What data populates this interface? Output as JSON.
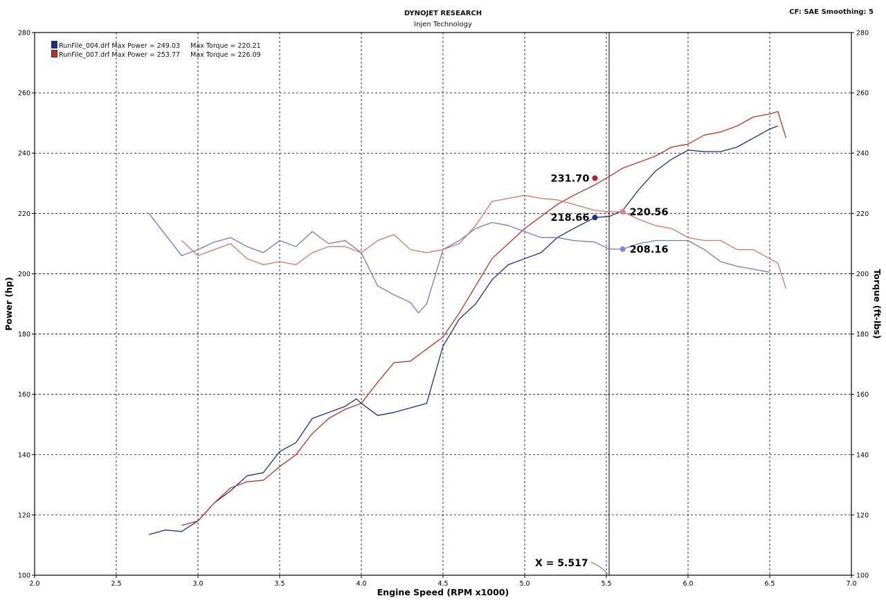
{
  "header": {
    "title": "DYNOJET RESEARCH",
    "subtitle": "Injen Technology",
    "settings": "CF: SAE  Smoothing: 5"
  },
  "legend": [
    {
      "file": "RunFile_004.drf",
      "power_label": "Max Power = 249.03",
      "torque_label": "Max Torque = 220.21",
      "color": "#1a2a9a"
    },
    {
      "file": "RunFile_007.drf",
      "power_label": "Max Power = 253.77",
      "torque_label": "Max Torque = 226.09",
      "color": "#c03020"
    }
  ],
  "cursor": {
    "label": "X = 5.517",
    "x": 5.517
  },
  "chart_data": {
    "type": "line",
    "xlabel": "Engine Speed (RPM x1000)",
    "ylabel": "Power (hp)",
    "y2label": "Torque (ft-lbs)",
    "xlim": [
      2.0,
      7.0
    ],
    "ylim": [
      100,
      280
    ],
    "y2lim": [
      100,
      280
    ],
    "xticks": [
      "2.0",
      "2.5",
      "3.0",
      "3.5",
      "4.0",
      "4.5",
      "5.0",
      "5.5",
      "6.0",
      "6.5",
      "7.0"
    ],
    "yticks": [
      "100",
      "120",
      "140",
      "160",
      "180",
      "200",
      "220",
      "240",
      "260",
      "280"
    ],
    "grid": true,
    "series": [
      {
        "name": "RunFile_004.drf Power",
        "color": "#1a2a9a",
        "x": [
          2.7,
          2.8,
          2.9,
          3.0,
          3.1,
          3.2,
          3.3,
          3.4,
          3.5,
          3.6,
          3.7,
          3.8,
          3.9,
          3.97,
          4.0,
          4.1,
          4.2,
          4.3,
          4.4,
          4.5,
          4.6,
          4.7,
          4.8,
          4.9,
          5.0,
          5.1,
          5.2,
          5.3,
          5.43,
          5.52,
          5.6,
          5.7,
          5.8,
          5.9,
          6.0,
          6.1,
          6.2,
          6.3,
          6.4,
          6.5,
          6.55
        ],
        "y": [
          113.5,
          115,
          114.5,
          118,
          124,
          128,
          133,
          134,
          141,
          144,
          152,
          154,
          156,
          158.5,
          157,
          153,
          154,
          155.5,
          157,
          176,
          185,
          190,
          198,
          203,
          205,
          207,
          212,
          215,
          218.66,
          219,
          221,
          228,
          234,
          238,
          241,
          240.5,
          240.5,
          242,
          245,
          248,
          249
        ]
      },
      {
        "name": "RunFile_007.drf Power",
        "color": "#c03020",
        "x": [
          2.9,
          3.0,
          3.1,
          3.2,
          3.3,
          3.4,
          3.5,
          3.6,
          3.7,
          3.8,
          3.9,
          4.0,
          4.1,
          4.2,
          4.3,
          4.4,
          4.5,
          4.6,
          4.7,
          4.8,
          4.9,
          5.0,
          5.1,
          5.2,
          5.3,
          5.43,
          5.5,
          5.6,
          5.7,
          5.8,
          5.9,
          6.0,
          6.1,
          6.2,
          6.3,
          6.4,
          6.5,
          6.55,
          6.6
        ],
        "y": [
          116.5,
          118,
          124,
          129,
          131,
          131.5,
          136,
          140,
          147,
          152,
          155,
          157,
          164,
          170.5,
          171,
          175,
          179,
          187,
          196,
          205,
          210,
          215,
          219,
          223,
          226,
          229.5,
          231.7,
          235,
          237,
          239,
          242,
          243,
          246,
          247,
          249,
          252,
          253,
          253.77,
          245
        ]
      },
      {
        "name": "RunFile_004.drf Torque",
        "color": "#6a78d8",
        "x": [
          2.7,
          2.8,
          2.9,
          3.0,
          3.1,
          3.2,
          3.3,
          3.4,
          3.5,
          3.6,
          3.7,
          3.8,
          3.9,
          4.0,
          4.1,
          4.2,
          4.3,
          4.35,
          4.4,
          4.5,
          4.6,
          4.7,
          4.8,
          4.9,
          5.0,
          5.1,
          5.2,
          5.3,
          5.43,
          5.52,
          5.6,
          5.7,
          5.8,
          5.9,
          6.0,
          6.1,
          6.2,
          6.3,
          6.4,
          6.5
        ],
        "y": [
          220,
          213,
          206,
          208,
          210.5,
          212,
          209,
          207,
          211,
          209,
          214,
          210,
          211,
          207,
          196,
          193,
          190.5,
          187,
          190,
          208,
          211,
          215,
          217,
          216,
          214,
          212,
          212,
          211,
          210.5,
          208.16,
          208.16,
          210,
          211,
          211,
          211,
          208,
          204,
          202.5,
          201.5,
          200.5
        ]
      },
      {
        "name": "RunFile_007.drf Torque",
        "color": "#e07060",
        "x": [
          2.9,
          3.0,
          3.1,
          3.2,
          3.3,
          3.4,
          3.5,
          3.6,
          3.7,
          3.8,
          3.9,
          4.0,
          4.1,
          4.2,
          4.3,
          4.4,
          4.5,
          4.6,
          4.7,
          4.8,
          4.9,
          5.0,
          5.1,
          5.2,
          5.3,
          5.43,
          5.52,
          5.6,
          5.7,
          5.8,
          5.9,
          6.0,
          6.1,
          6.2,
          6.3,
          6.4,
          6.5,
          6.55,
          6.6
        ],
        "y": [
          211,
          206,
          208,
          210,
          205,
          203,
          204,
          203,
          207,
          209,
          209,
          207,
          211,
          213,
          208,
          207,
          208,
          210,
          216,
          224,
          225,
          226,
          225,
          224.5,
          223,
          221,
          220.56,
          220.56,
          218,
          216,
          215,
          212,
          211,
          211,
          208,
          208,
          205,
          203.5,
          195
        ]
      }
    ],
    "markers": [
      {
        "x": 5.43,
        "y": 231.7,
        "label": "231.70",
        "color": "#cc1a1a",
        "side": "left"
      },
      {
        "x": 5.43,
        "y": 218.66,
        "label": "218.66",
        "color": "#1a2aa0",
        "side": "left"
      },
      {
        "x": 5.6,
        "y": 220.56,
        "label": "220.56",
        "color": "#e88080",
        "side": "right"
      },
      {
        "x": 5.6,
        "y": 208.16,
        "label": "208.16",
        "color": "#7a88e0",
        "side": "right"
      }
    ]
  }
}
